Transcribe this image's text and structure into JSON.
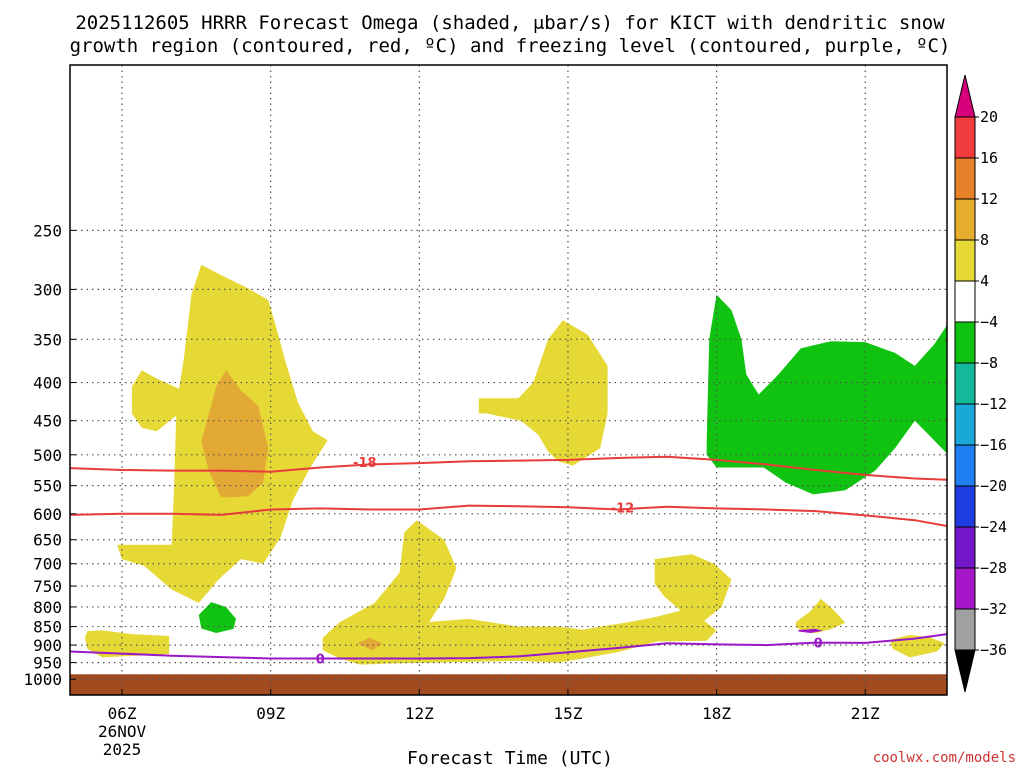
{
  "title_line1": "2025112605 HRRR Forecast Omega (shaded, μbar/s) for KICT with dendritic snow",
  "title_line2": "growth region (contoured, red, ºC) and freezing level (contoured, purple, ºC)",
  "credit": "coolwx.com/models",
  "chart_data": {
    "type": "area",
    "title": "2025112605 HRRR Forecast Omega (shaded, μbar/s) for KICT with dendritic snow growth region (contoured, red, ºC) and freezing level (contoured, purple, ºC)",
    "xlabel": "Forecast Time (UTC)",
    "ylabel": "",
    "x_range_hours": [
      4.95,
      22.65
    ],
    "y_range_hPa": [
      1050,
      150
    ],
    "y_scale": "log (pressure)",
    "x_ticks": [
      {
        "hour": 6,
        "label": "06Z",
        "sub1": "26NOV",
        "sub2": "2025"
      },
      {
        "hour": 9,
        "label": "09Z"
      },
      {
        "hour": 12,
        "label": "12Z"
      },
      {
        "hour": 15,
        "label": "15Z"
      },
      {
        "hour": 18,
        "label": "18Z"
      },
      {
        "hour": 21,
        "label": "21Z"
      }
    ],
    "y_ticks": [
      250,
      300,
      350,
      400,
      450,
      500,
      550,
      600,
      650,
      700,
      750,
      800,
      850,
      900,
      950,
      1000
    ],
    "grid": true,
    "colorbar": {
      "levels": [
        "20",
        "16",
        "12",
        "8",
        "4",
        "−4",
        "−8",
        "−12",
        "−16",
        "−20",
        "−24",
        "−28",
        "−32",
        "−36"
      ],
      "colors": [
        "#d6007a",
        "#f03c3c",
        "#e8822a",
        "#e6ac2c",
        "#e6d936",
        "#ffffff",
        "#10c310",
        "#14b89a",
        "#1aa8d8",
        "#1f7ef0",
        "#1f3ce0",
        "#7316c8",
        "#a516c8",
        "#a0a0a0",
        "#000000"
      ]
    },
    "contours": [
      {
        "name": "-18",
        "color": "#e83c3c",
        "points": [
          [
            4.95,
            521
          ],
          [
            6,
            524
          ],
          [
            7,
            525
          ],
          [
            8,
            525
          ],
          [
            9,
            527
          ],
          [
            10,
            520
          ],
          [
            11,
            515
          ],
          [
            12,
            513
          ],
          [
            13,
            510
          ],
          [
            14,
            509
          ],
          [
            15,
            508
          ],
          [
            16,
            505
          ],
          [
            17,
            503
          ],
          [
            18,
            508
          ],
          [
            19,
            515
          ],
          [
            20,
            524
          ],
          [
            21,
            532
          ],
          [
            22,
            538
          ],
          [
            22.65,
            540
          ]
        ]
      },
      {
        "name": "-12",
        "color": "#e83c3c",
        "points": [
          [
            4.95,
            602
          ],
          [
            6,
            600
          ],
          [
            7,
            600
          ],
          [
            8,
            602
          ],
          [
            9,
            592
          ],
          [
            10,
            590
          ],
          [
            11,
            592
          ],
          [
            12,
            592
          ],
          [
            13,
            585
          ],
          [
            14,
            586
          ],
          [
            15,
            588
          ],
          [
            16,
            592
          ],
          [
            17,
            587
          ],
          [
            18,
            590
          ],
          [
            19,
            592
          ],
          [
            20,
            595
          ],
          [
            21,
            603
          ],
          [
            22,
            612
          ],
          [
            22.65,
            623
          ]
        ]
      },
      {
        "name": "0",
        "color": "#9a18c8",
        "points": [
          [
            4.95,
            918
          ],
          [
            6,
            924
          ],
          [
            7,
            930
          ],
          [
            8,
            934
          ],
          [
            9,
            938
          ],
          [
            10,
            938
          ],
          [
            11,
            938
          ],
          [
            12,
            938
          ],
          [
            13,
            937
          ],
          [
            14,
            932
          ],
          [
            15,
            920
          ],
          [
            16,
            908
          ],
          [
            17,
            895
          ],
          [
            18,
            898
          ],
          [
            19,
            900
          ],
          [
            20,
            893
          ],
          [
            21,
            894
          ],
          [
            22,
            882
          ],
          [
            22.65,
            870
          ]
        ]
      }
    ],
    "shaded_regions": [
      {
        "name": "4 to 8",
        "color": "#e6d936",
        "points": [
          [
            5,
            660
          ],
          [
            6,
            660
          ],
          [
            7,
            660
          ],
          [
            7.05,
            550
          ],
          [
            7.1,
            430
          ],
          [
            7.25,
            370
          ],
          [
            7.4,
            305
          ],
          [
            7.6,
            278
          ],
          [
            8,
            287
          ],
          [
            8.5,
            298
          ],
          [
            8.95,
            310
          ],
          [
            9.1,
            335
          ],
          [
            9.3,
            375
          ],
          [
            9.55,
            425
          ],
          [
            9.85,
            465
          ],
          [
            10.15,
            478
          ],
          [
            9.8,
            520
          ],
          [
            9.45,
            575
          ],
          [
            9.2,
            645
          ],
          [
            8.85,
            700
          ],
          [
            8.4,
            690
          ],
          [
            7.95,
            735
          ],
          [
            7.55,
            790
          ],
          [
            7,
            758
          ],
          [
            6.45,
            705
          ],
          [
            6,
            690
          ],
          [
            5.9,
            660
          ],
          [
            5,
            660
          ]
        ]
      },
      {
        "name": "8 to 12",
        "color": "#e2aa34",
        "points": [
          [
            7.6,
            480
          ],
          [
            7.9,
            405
          ],
          [
            8.1,
            385
          ],
          [
            8.4,
            410
          ],
          [
            8.75,
            430
          ],
          [
            8.95,
            490
          ],
          [
            8.85,
            545
          ],
          [
            8.55,
            568
          ],
          [
            8.25,
            570
          ],
          [
            8,
            570
          ],
          [
            7.75,
            525
          ]
        ]
      },
      {
        "name": "4 to 8",
        "color": "#e6d936",
        "points": [
          [
            6.2,
            405
          ],
          [
            6.4,
            385
          ],
          [
            6.7,
            395
          ],
          [
            7.4,
            415
          ],
          [
            7.15,
            440
          ],
          [
            6.7,
            465
          ],
          [
            6.4,
            460
          ],
          [
            6.2,
            440
          ]
        ]
      },
      {
        "name": "4 to 8",
        "color": "#e6d936",
        "points": [
          [
            13.2,
            420
          ],
          [
            14,
            420
          ],
          [
            14.3,
            400
          ],
          [
            14.6,
            350
          ],
          [
            14.9,
            330
          ],
          [
            15.4,
            345
          ],
          [
            15.8,
            380
          ],
          [
            15.8,
            440
          ],
          [
            15.65,
            490
          ],
          [
            15.1,
            517
          ],
          [
            14.8,
            510
          ],
          [
            14.6,
            495
          ],
          [
            14.4,
            470
          ],
          [
            14.05,
            450
          ],
          [
            13.35,
            440
          ],
          [
            13.2,
            440
          ]
        ]
      },
      {
        "name": "-4 to -8",
        "color": "#10c310",
        "points": [
          [
            17.8,
            480
          ],
          [
            17.85,
            350
          ],
          [
            18,
            305
          ],
          [
            18.3,
            320
          ],
          [
            18.5,
            350
          ],
          [
            18.6,
            390
          ],
          [
            18.85,
            415
          ],
          [
            19.25,
            390
          ],
          [
            19.7,
            360
          ],
          [
            20.3,
            352
          ],
          [
            21,
            353
          ],
          [
            21.6,
            365
          ],
          [
            22,
            380
          ],
          [
            22.4,
            355
          ],
          [
            22.65,
            335
          ],
          [
            22.65,
            498
          ],
          [
            22.35,
            475
          ],
          [
            22,
            450
          ],
          [
            21.6,
            490
          ],
          [
            21.2,
            525
          ],
          [
            20.6,
            558
          ],
          [
            19.95,
            565
          ],
          [
            19.4,
            545
          ],
          [
            18.95,
            520
          ],
          [
            18.5,
            520
          ],
          [
            18,
            520
          ],
          [
            17.8,
            500
          ]
        ]
      },
      {
        "name": "-4 to -8",
        "color": "#10c310",
        "points": [
          [
            7.55,
            820
          ],
          [
            7.8,
            788
          ],
          [
            8.1,
            800
          ],
          [
            8.3,
            830
          ],
          [
            8.25,
            856
          ],
          [
            7.9,
            867
          ],
          [
            7.6,
            855
          ]
        ]
      },
      {
        "name": "4 to 8",
        "color": "#e6d936",
        "points": [
          [
            10.05,
            880
          ],
          [
            10.4,
            838
          ],
          [
            11.1,
            790
          ],
          [
            11.6,
            720
          ],
          [
            11.7,
            635
          ],
          [
            11.95,
            612
          ],
          [
            12.5,
            650
          ],
          [
            12.75,
            710
          ],
          [
            12.5,
            780
          ],
          [
            12.2,
            838
          ],
          [
            13,
            830
          ],
          [
            14,
            850
          ],
          [
            14.8,
            850
          ],
          [
            15.3,
            858
          ],
          [
            15.65,
            850
          ],
          [
            16.15,
            840
          ],
          [
            16.7,
            827
          ],
          [
            17.4,
            805
          ],
          [
            17.7,
            830
          ],
          [
            18,
            860
          ],
          [
            17.8,
            888
          ],
          [
            16.8,
            890
          ],
          [
            16,
            920
          ],
          [
            15.2,
            940
          ],
          [
            14.8,
            950
          ],
          [
            14,
            945
          ],
          [
            13,
            948
          ],
          [
            11.3,
            953
          ],
          [
            10.8,
            956
          ],
          [
            10.4,
            938
          ],
          [
            10.05,
            915
          ]
        ]
      },
      {
        "name": "4 to 8",
        "color": "#e6d936",
        "points": [
          [
            16.75,
            690
          ],
          [
            17.5,
            680
          ],
          [
            17.95,
            700
          ],
          [
            18.3,
            735
          ],
          [
            18.1,
            800
          ],
          [
            17.75,
            835
          ],
          [
            17.65,
            850
          ],
          [
            17.4,
            822
          ],
          [
            16.95,
            775
          ],
          [
            16.75,
            745
          ]
        ]
      },
      {
        "name": "4 to 8",
        "color": "#e6d936",
        "points": [
          [
            5.3,
            862
          ],
          [
            5.6,
            860
          ],
          [
            6.2,
            870
          ],
          [
            6.95,
            875
          ],
          [
            6.95,
            925
          ],
          [
            6.3,
            930
          ],
          [
            5.6,
            935
          ],
          [
            5.3,
            910
          ],
          [
            5.25,
            880
          ]
        ]
      },
      {
        "name": "4 to 8",
        "color": "#e6d936",
        "points": [
          [
            19.6,
            838
          ],
          [
            19.9,
            810
          ],
          [
            20.1,
            780
          ],
          [
            20.35,
            806
          ],
          [
            20.6,
            840
          ],
          [
            20.3,
            857
          ],
          [
            20,
            867
          ],
          [
            19.8,
            865
          ],
          [
            19.6,
            852
          ]
        ]
      },
      {
        "name": "4 to 8",
        "color": "#e6d936",
        "points": [
          [
            21.5,
            885
          ],
          [
            21.9,
            872
          ],
          [
            22.3,
            878
          ],
          [
            22.6,
            895
          ],
          [
            22.45,
            918
          ],
          [
            21.9,
            935
          ],
          [
            21.55,
            910
          ]
        ]
      },
      {
        "name": "8 to 12",
        "color": "#e2aa34",
        "points": [
          [
            10.75,
            895
          ],
          [
            11,
            880
          ],
          [
            11.25,
            895
          ],
          [
            11.05,
            915
          ]
        ]
      },
      {
        "name": "-28 to -32",
        "color": "#9a18c8",
        "points": [
          [
            19.65,
            859
          ],
          [
            20,
            856
          ],
          [
            20.15,
            861
          ],
          [
            19.9,
            867
          ],
          [
            19.65,
            863
          ]
        ]
      },
      {
        "name": "surface",
        "color": "#a24a20",
        "points": [
          [
            4.95,
            985
          ],
          [
            22.65,
            985
          ],
          [
            22.65,
            1050
          ],
          [
            4.95,
            1050
          ]
        ]
      }
    ],
    "contour_labels": [
      {
        "text": "-18",
        "x": 10.9,
        "p": 511,
        "color": "#e83c3c"
      },
      {
        "text": "-12",
        "x": 16.1,
        "p": 588,
        "color": "#e83c3c"
      },
      {
        "text": "0",
        "x": 10.0,
        "p": 938,
        "color": "#9a18c8"
      },
      {
        "text": "0",
        "x": 20.05,
        "p": 893,
        "color": "#9a18c8"
      }
    ]
  }
}
